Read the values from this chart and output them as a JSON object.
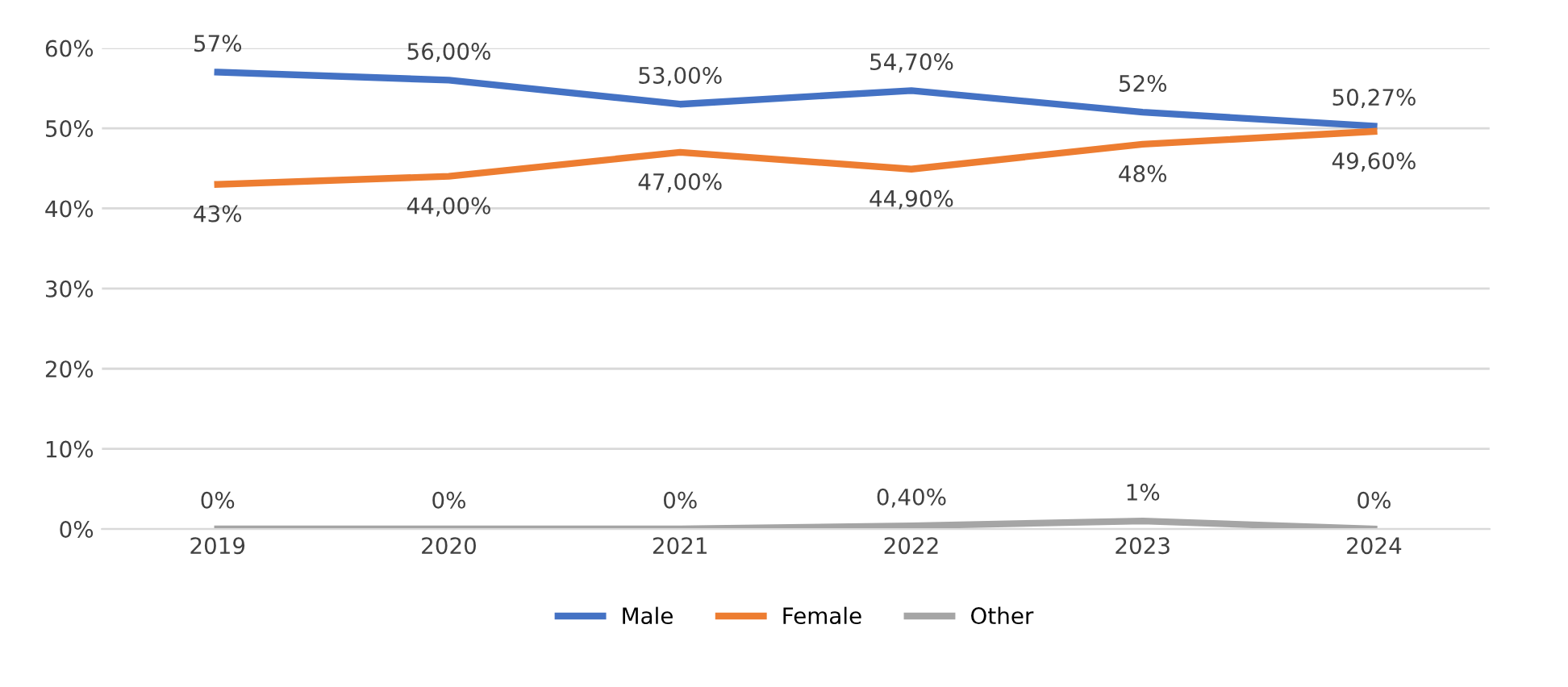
{
  "chart_data": {
    "type": "line",
    "categories": [
      "2019",
      "2020",
      "2021",
      "2022",
      "2023",
      "2024"
    ],
    "series": [
      {
        "name": "Male",
        "color": "#4472c4",
        "values": [
          57,
          56,
          53,
          54.7,
          52,
          50.27
        ],
        "value_labels": [
          "57%",
          "56,00%",
          "53,00%",
          "54,70%",
          "52%",
          "50,27%"
        ]
      },
      {
        "name": "Female",
        "color": "#ed7d31",
        "values": [
          43,
          44,
          47,
          44.9,
          48,
          49.6
        ],
        "value_labels": [
          "43%",
          "44,00%",
          "47,00%",
          "44,90%",
          "48%",
          "49,60%"
        ]
      },
      {
        "name": "Other",
        "color": "#a5a5a5",
        "values": [
          0,
          0,
          0,
          0.4,
          1,
          0
        ],
        "value_labels": [
          "0%",
          "0%",
          "0%",
          "0,40%",
          "1%",
          "0%"
        ]
      }
    ],
    "ylim": [
      0,
      60
    ],
    "yticks": [
      {
        "value": 0,
        "label": "0%"
      },
      {
        "value": 10,
        "label": "10%"
      },
      {
        "value": 20,
        "label": "20%"
      },
      {
        "value": 30,
        "label": "30%"
      },
      {
        "value": 40,
        "label": "40%"
      },
      {
        "value": 50,
        "label": "50%"
      },
      {
        "value": 60,
        "label": "60%"
      }
    ],
    "grid": "y",
    "legend": "bottom",
    "marker": "none",
    "line_style": "solid"
  }
}
